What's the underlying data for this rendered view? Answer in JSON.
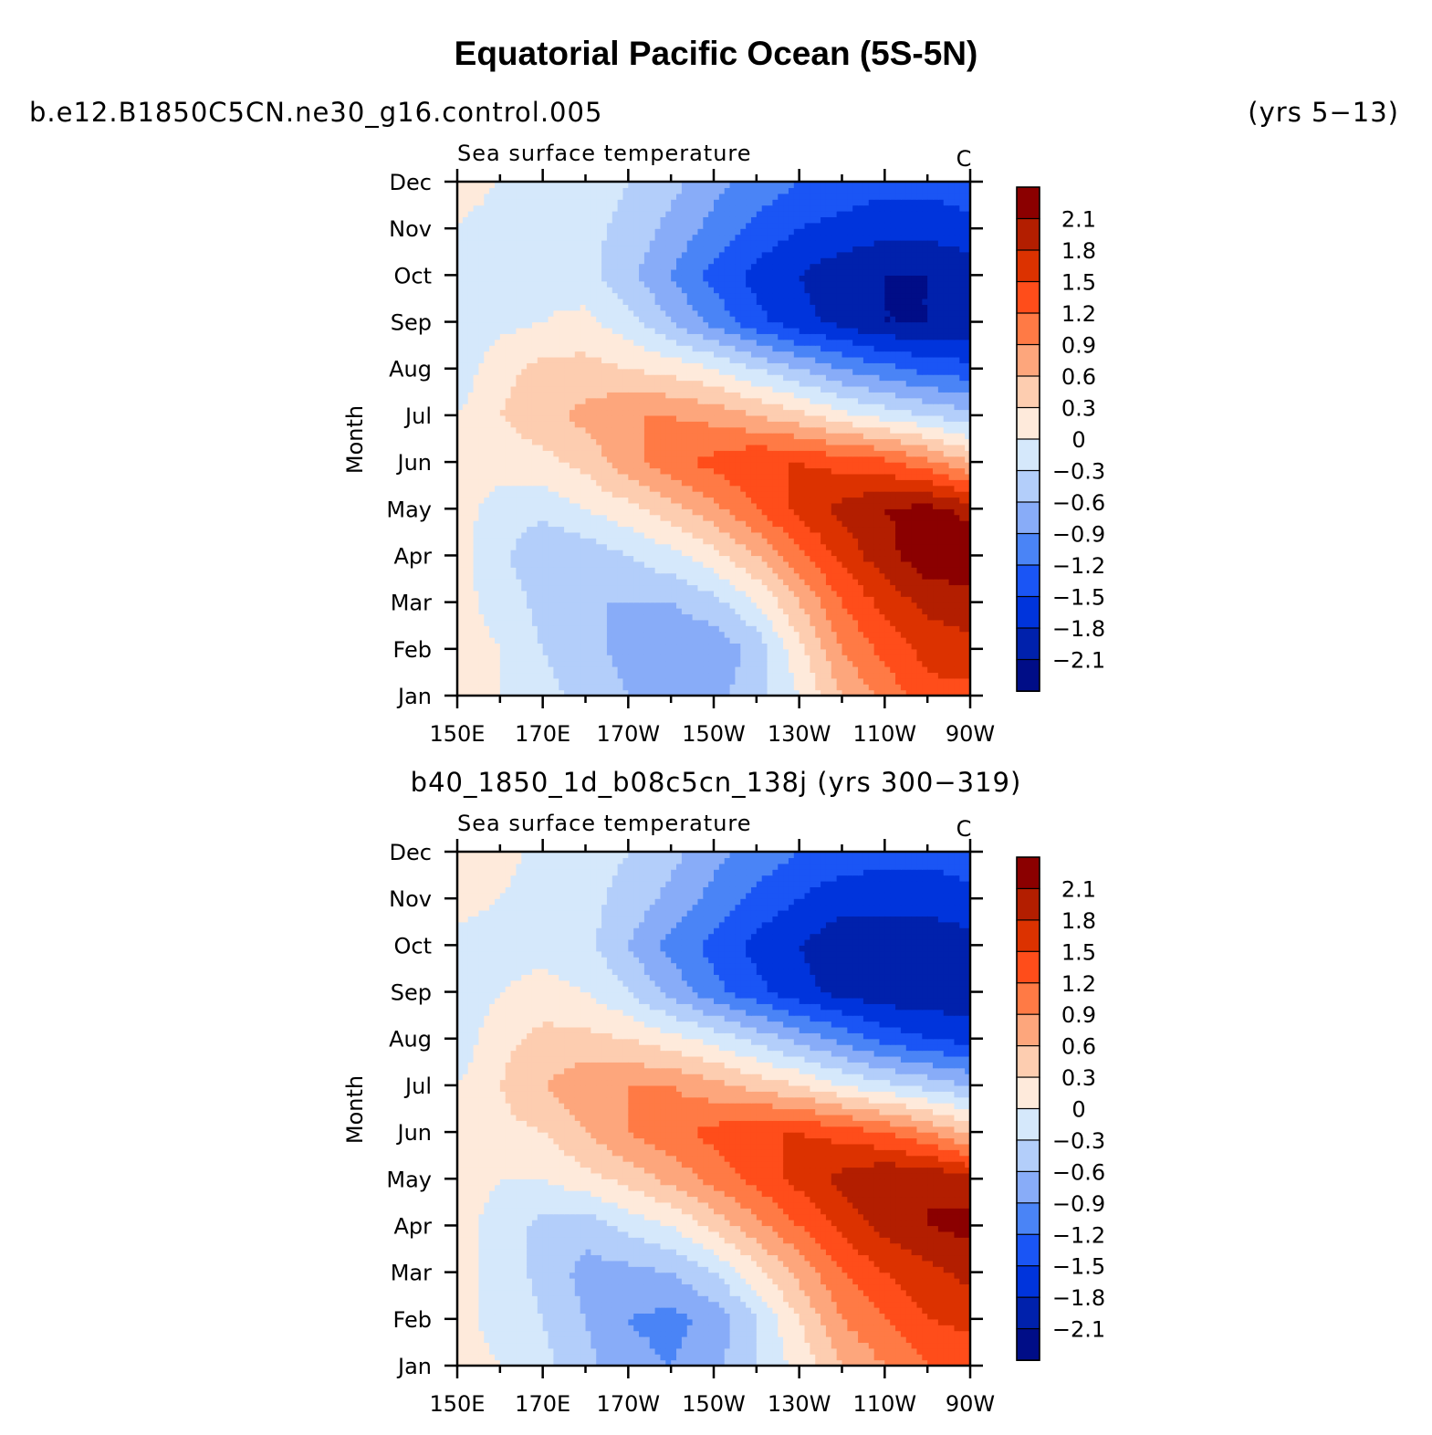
{
  "title": "Equatorial Pacific Ocean (5S-5N)",
  "case1": {
    "name": "b.e12.B1850C5CN.ne30_g16.control.005",
    "years": "(yrs 5−13)"
  },
  "case2": {
    "label": "b40_1850_1d_b08c5cn_138j (yrs 300−319)"
  },
  "chart_data": [
    {
      "type": "heatmap",
      "title": "Sea surface temperature",
      "units": "C",
      "xlabel": "",
      "ylabel": "Month",
      "x": [
        150,
        160,
        170,
        180,
        190,
        200,
        210,
        220,
        230,
        240,
        250,
        260,
        270
      ],
      "xticklabels": [
        "150E",
        "170E",
        "170W",
        "150W",
        "130W",
        "110W",
        "90W"
      ],
      "yticklabels": [
        "Jan",
        "Feb",
        "Mar",
        "Apr",
        "May",
        "Jun",
        "Jul",
        "Aug",
        "Sep",
        "Oct",
        "Nov",
        "Dec"
      ],
      "levels": [
        -2.1,
        -1.8,
        -1.5,
        -1.2,
        -0.9,
        -0.6,
        -0.3,
        0,
        0.3,
        0.6,
        0.9,
        1.2,
        1.5,
        1.8,
        2.1
      ],
      "level_labels": [
        "2.1",
        "1.8",
        "1.5",
        "1.2",
        "0.9",
        "0.6",
        "0.3",
        "0",
        "−0.3",
        "−0.6",
        "−0.9",
        "−1.2",
        "−1.5",
        "−1.8",
        "−2.1"
      ],
      "colors": [
        "#8b0000",
        "#b31e00",
        "#dc3200",
        "#ff4d1a",
        "#ff7a45",
        "#fda67c",
        "#fdcdb0",
        "#feeadb",
        "#d5e8fb",
        "#b3cefa",
        "#88acf8",
        "#4a84f6",
        "#1a55f5",
        "#0034dc",
        "#0021ac",
        "#000d87"
      ],
      "values": [
        [
          0.1,
          0.0,
          -0.2,
          -0.4,
          -0.6,
          -0.8,
          -0.7,
          -0.4,
          0.0,
          0.6,
          1.0,
          1.4,
          1.4
        ],
        [
          0.1,
          0.0,
          -0.3,
          -0.5,
          -0.7,
          -0.9,
          -0.8,
          -0.5,
          0.2,
          0.9,
          1.3,
          1.6,
          1.7
        ],
        [
          0.1,
          -0.1,
          -0.4,
          -0.6,
          -0.6,
          -0.6,
          -0.4,
          0.0,
          0.6,
          1.2,
          1.6,
          1.9,
          2.0
        ],
        [
          0.1,
          -0.2,
          -0.6,
          -0.5,
          -0.3,
          -0.1,
          0.2,
          0.6,
          1.1,
          1.6,
          2.0,
          2.3,
          2.3
        ],
        [
          0.1,
          -0.1,
          -0.2,
          0.0,
          0.2,
          0.5,
          0.8,
          1.2,
          1.6,
          1.9,
          2.1,
          2.2,
          2.0
        ],
        [
          0.1,
          0.1,
          0.2,
          0.4,
          0.8,
          1.1,
          1.3,
          1.5,
          1.5,
          1.4,
          1.3,
          1.0,
          0.6
        ],
        [
          0.0,
          0.3,
          0.5,
          0.7,
          0.9,
          0.9,
          0.8,
          0.6,
          0.4,
          0.1,
          -0.1,
          -0.3,
          -0.5
        ],
        [
          -0.2,
          0.2,
          0.4,
          0.4,
          0.3,
          0.2,
          0.0,
          -0.3,
          -0.6,
          -0.9,
          -1.1,
          -1.3,
          -1.4
        ],
        [
          -0.3,
          -0.1,
          0.0,
          0.1,
          -0.2,
          -0.6,
          -1.0,
          -1.4,
          -1.7,
          -1.9,
          -2.1,
          -2.1,
          -2.0
        ],
        [
          -0.1,
          -0.1,
          -0.1,
          -0.2,
          -0.5,
          -0.9,
          -1.3,
          -1.6,
          -1.8,
          -2.0,
          -2.1,
          -2.1,
          -2.0
        ],
        [
          0.0,
          -0.1,
          -0.1,
          -0.2,
          -0.4,
          -0.7,
          -1.0,
          -1.3,
          -1.5,
          -1.6,
          -1.7,
          -1.7,
          -1.6
        ],
        [
          0.1,
          0.0,
          -0.1,
          -0.1,
          -0.3,
          -0.5,
          -0.8,
          -1.0,
          -1.2,
          -1.3,
          -1.4,
          -1.4,
          -1.3
        ]
      ]
    },
    {
      "type": "heatmap",
      "title": "Sea surface temperature",
      "units": "C",
      "xlabel": "",
      "ylabel": "Month",
      "x": [
        150,
        160,
        170,
        180,
        190,
        200,
        210,
        220,
        230,
        240,
        250,
        260,
        270
      ],
      "xticklabels": [
        "150E",
        "170E",
        "170W",
        "150W",
        "130W",
        "110W",
        "90W"
      ],
      "yticklabels": [
        "Jan",
        "Feb",
        "Mar",
        "Apr",
        "May",
        "Jun",
        "Jul",
        "Aug",
        "Sep",
        "Oct",
        "Nov",
        "Dec"
      ],
      "levels": [
        -2.1,
        -1.8,
        -1.5,
        -1.2,
        -0.9,
        -0.6,
        -0.3,
        0,
        0.3,
        0.6,
        0.9,
        1.2,
        1.5,
        1.8,
        2.1
      ],
      "level_labels": [
        "2.1",
        "1.8",
        "1.5",
        "1.2",
        "0.9",
        "0.6",
        "0.3",
        "0",
        "−0.3",
        "−0.6",
        "−0.9",
        "−1.2",
        "−1.5",
        "−1.8",
        "−2.1"
      ],
      "colors": [
        "#8b0000",
        "#b31e00",
        "#dc3200",
        "#ff4d1a",
        "#ff7a45",
        "#fda67c",
        "#fdcdb0",
        "#feeadb",
        "#d5e8fb",
        "#b3cefa",
        "#88acf8",
        "#4a84f6",
        "#1a55f5",
        "#0034dc",
        "#0021ac",
        "#000d87"
      ],
      "values": [
        [
          0.1,
          0.0,
          -0.2,
          -0.5,
          -0.8,
          -0.9,
          -0.7,
          -0.3,
          0.1,
          0.6,
          0.9,
          1.2,
          1.3
        ],
        [
          0.1,
          -0.1,
          -0.3,
          -0.6,
          -0.9,
          -1.0,
          -0.8,
          -0.3,
          0.3,
          0.9,
          1.2,
          1.5,
          1.6
        ],
        [
          0.1,
          -0.1,
          -0.4,
          -0.7,
          -0.7,
          -0.6,
          -0.3,
          0.2,
          0.7,
          1.2,
          1.5,
          1.7,
          1.9
        ],
        [
          0.1,
          -0.1,
          -0.4,
          -0.5,
          -0.2,
          0.0,
          0.4,
          0.8,
          1.2,
          1.6,
          1.9,
          2.1,
          2.2
        ],
        [
          0.1,
          0.0,
          0.0,
          0.2,
          0.4,
          0.7,
          1.0,
          1.3,
          1.6,
          1.9,
          2.1,
          2.1,
          1.9
        ],
        [
          0.1,
          0.2,
          0.3,
          0.6,
          0.9,
          1.1,
          1.3,
          1.5,
          1.5,
          1.4,
          1.2,
          0.9,
          0.5
        ],
        [
          0.0,
          0.3,
          0.6,
          0.8,
          0.9,
          0.9,
          0.7,
          0.5,
          0.3,
          0.0,
          -0.2,
          -0.4,
          -0.6
        ],
        [
          -0.2,
          0.2,
          0.4,
          0.4,
          0.3,
          0.1,
          -0.1,
          -0.4,
          -0.7,
          -1.0,
          -1.3,
          -1.5,
          -1.6
        ],
        [
          -0.2,
          0.0,
          0.1,
          0.0,
          -0.3,
          -0.7,
          -1.1,
          -1.4,
          -1.7,
          -1.9,
          -2.0,
          -2.0,
          -2.0
        ],
        [
          -0.1,
          -0.1,
          -0.1,
          -0.2,
          -0.6,
          -1.0,
          -1.3,
          -1.6,
          -1.8,
          -2.0,
          -2.0,
          -2.0,
          -1.9
        ],
        [
          0.1,
          0.0,
          -0.1,
          -0.2,
          -0.4,
          -0.7,
          -1.0,
          -1.3,
          -1.5,
          -1.7,
          -1.7,
          -1.7,
          -1.6
        ],
        [
          0.2,
          0.1,
          -0.1,
          -0.2,
          -0.3,
          -0.5,
          -0.8,
          -1.0,
          -1.2,
          -1.3,
          -1.4,
          -1.4,
          -1.3
        ]
      ]
    }
  ]
}
